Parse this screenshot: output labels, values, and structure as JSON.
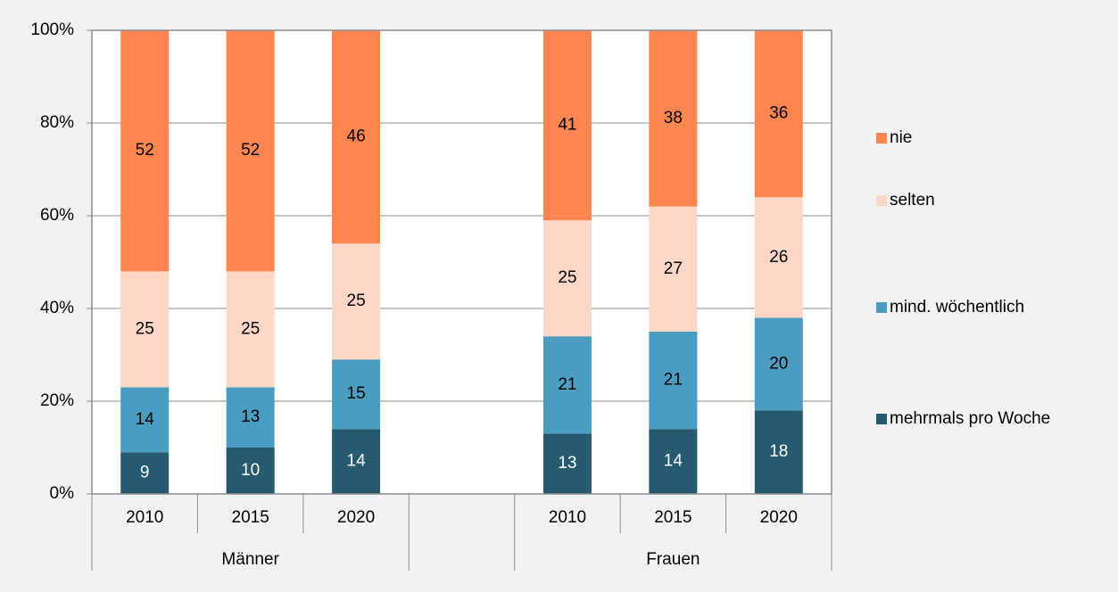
{
  "chart_data": {
    "type": "stacked-bar",
    "categories": [
      "2010",
      "2015",
      "2020",
      null,
      "2010",
      "2015",
      "2020"
    ],
    "group_labels": [
      "Männer",
      "Frauen"
    ],
    "series": [
      {
        "name": "mehrmals pro Woche",
        "color": "#265a6e",
        "values": [
          9,
          10,
          14,
          null,
          13,
          14,
          18
        ]
      },
      {
        "name": "mind. wöchentlich",
        "color": "#4a9dc0",
        "values": [
          14,
          13,
          15,
          null,
          21,
          21,
          20
        ]
      },
      {
        "name": "selten",
        "color": "#fdd6c6",
        "values": [
          25,
          25,
          25,
          null,
          25,
          27,
          26
        ]
      },
      {
        "name": "nie",
        "color": "#fd8550",
        "values": [
          52,
          52,
          46,
          null,
          41,
          38,
          36
        ]
      }
    ],
    "ylim": [
      0,
      100
    ],
    "yticks": [
      {
        "value": 0,
        "label": "0%"
      },
      {
        "value": 20,
        "label": "20%"
      },
      {
        "value": 40,
        "label": "40%"
      },
      {
        "value": 60,
        "label": "60%"
      },
      {
        "value": 80,
        "label": "80%"
      },
      {
        "value": 100,
        "label": "100%"
      }
    ],
    "grid": true,
    "legend": "right"
  }
}
